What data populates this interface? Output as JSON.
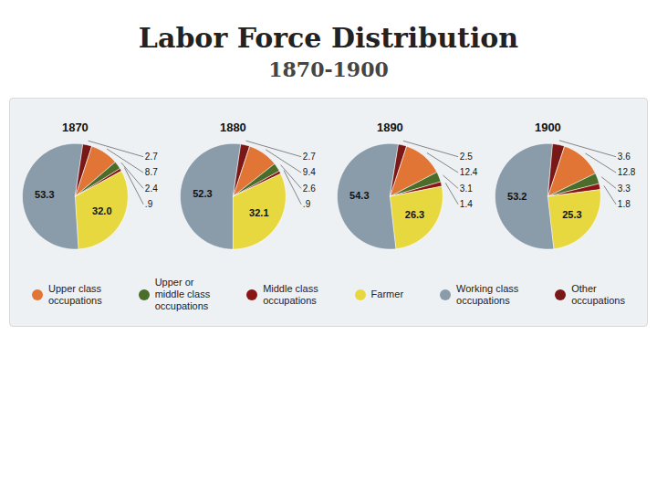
{
  "chart_data": {
    "type": "pie",
    "title": "Labor Force Distribution",
    "subtitle": "1870-1900",
    "categories": [
      "Upper class\noccupations",
      "Upper or\nmiddle class\noccupations",
      "Middle class\noccupations",
      "Farmer",
      "Working class\noccupations",
      "Other\noccupations"
    ],
    "colors": [
      "#e07535",
      "#4a6e2a",
      "#8b1515",
      "#e8d840",
      "#8a9baa",
      "#7a1818"
    ],
    "series": [
      {
        "name": "1870",
        "values": [
          8.7,
          2.4,
          0.9,
          32.0,
          53.3,
          2.7
        ],
        "value_labels": [
          "8.7",
          "2.4",
          ".9",
          "32.0",
          "53.3",
          "2.7"
        ]
      },
      {
        "name": "1880",
        "values": [
          9.4,
          2.6,
          0.9,
          32.1,
          52.3,
          2.7
        ],
        "value_labels": [
          "9.4",
          "2.6",
          ".9",
          "32.1",
          "52.3",
          "2.7"
        ]
      },
      {
        "name": "1890",
        "values": [
          12.4,
          3.1,
          1.4,
          26.3,
          54.3,
          2.5
        ],
        "value_labels": [
          "12.4",
          "3.1",
          "1.4",
          "26.3",
          "54.3",
          "2.5"
        ]
      },
      {
        "name": "1900",
        "values": [
          12.8,
          3.3,
          1.8,
          25.3,
          53.2,
          3.6
        ],
        "value_labels": [
          "12.8",
          "3.3",
          "1.8",
          "25.3",
          "53.2",
          "3.6"
        ]
      }
    ],
    "data_labels": true,
    "legend": "bottom"
  }
}
